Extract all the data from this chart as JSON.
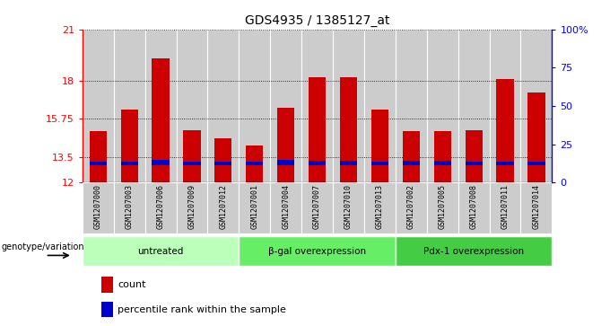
{
  "title": "GDS4935 / 1385127_at",
  "samples": [
    "GSM1207000",
    "GSM1207003",
    "GSM1207006",
    "GSM1207009",
    "GSM1207012",
    "GSM1207001",
    "GSM1207004",
    "GSM1207007",
    "GSM1207010",
    "GSM1207013",
    "GSM1207002",
    "GSM1207005",
    "GSM1207008",
    "GSM1207011",
    "GSM1207014"
  ],
  "counts": [
    15.0,
    16.3,
    19.3,
    15.1,
    14.6,
    14.2,
    16.4,
    18.2,
    18.2,
    16.3,
    15.0,
    15.0,
    15.1,
    18.1,
    17.3
  ],
  "percentile_heights": [
    0.25,
    0.25,
    0.35,
    0.25,
    0.25,
    0.25,
    0.35,
    0.3,
    0.3,
    0.25,
    0.3,
    0.3,
    0.25,
    0.25,
    0.25
  ],
  "groups": [
    {
      "label": "untreated",
      "start": 0,
      "end": 5,
      "color": "#bbffbb"
    },
    {
      "label": "β-gal overexpression",
      "start": 5,
      "end": 10,
      "color": "#66ee66"
    },
    {
      "label": "Pdx-1 overexpression",
      "start": 10,
      "end": 15,
      "color": "#44cc44"
    }
  ],
  "ymin": 12,
  "ymax": 21,
  "yticks": [
    12,
    13.5,
    15.75,
    18,
    21
  ],
  "ytick_labels": [
    "12",
    "13.5",
    "15.75",
    "18",
    "21"
  ],
  "right_yticks_pct": [
    0,
    25,
    50,
    75,
    100
  ],
  "right_ytick_labels": [
    "0",
    "25",
    "50",
    "75",
    "100%"
  ],
  "bar_color": "#cc0000",
  "percentile_color": "#0000cc",
  "bar_width": 0.55,
  "legend_label_count": "count",
  "legend_label_pct": "percentile rank within the sample",
  "xlabel_group": "genotype/variation",
  "bg_color": "#cccccc",
  "percentile_base": 13.0
}
